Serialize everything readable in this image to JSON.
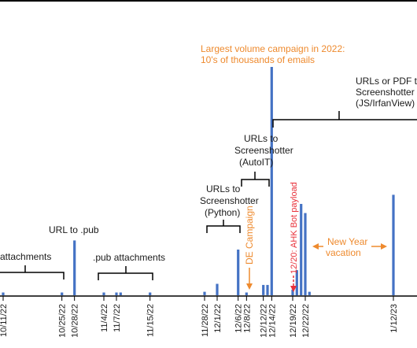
{
  "chart_data": {
    "type": "bar",
    "title": "",
    "xlabel": "",
    "ylabel": "",
    "bar_color": "#4472c4",
    "bars": [
      {
        "x": "10/11/22",
        "value": 0.012
      },
      {
        "x": "10/25/22",
        "value": 0.012
      },
      {
        "x": "10/28/22",
        "value": 0.24
      },
      {
        "x": "11/4/22",
        "value": 0.012
      },
      {
        "x": "11/7/22",
        "value": 0.012
      },
      {
        "x": "11/8/22",
        "value": 0.012
      },
      {
        "x": "11/15/22",
        "value": 0.012
      },
      {
        "x": "11/28/22",
        "value": 0.015
      },
      {
        "x": "12/1/22",
        "value": 0.05
      },
      {
        "x": "12/6/22",
        "value": 0.2
      },
      {
        "x": "12/8/22",
        "value": 0.012
      },
      {
        "x": "12/12/22",
        "value": 0.045
      },
      {
        "x": "12/13/22",
        "value": 0.045
      },
      {
        "x": "12/14/22",
        "value": 1.0
      },
      {
        "x": "12/19/22",
        "value": 0.025
      },
      {
        "x": "12/20/22",
        "value": 0.11
      },
      {
        "x": "12/21/22",
        "value": 0.4
      },
      {
        "x": "12/22/22",
        "value": 0.36
      },
      {
        "x": "12/23/22",
        "value": 0.015
      },
      {
        "x": "1/12/23",
        "value": 0.44
      }
    ],
    "tick_labels": [
      "10/11/22",
      "10/25/22",
      "10/28/22",
      "11/4/22",
      "11/7/22",
      "11/15/22",
      "11/28/22",
      "12/1/22",
      "12/6/22",
      "12/8/22",
      "12/12/22",
      "12/14/22",
      "12/19/22",
      "12/22/22",
      "1/12/23"
    ],
    "annotations": {
      "largest_campaign": {
        "lines": [
          "Largest volume campaign in 2022:",
          "10's of thousands of emails"
        ],
        "color": "#ee8a2e"
      },
      "urls_pdf": {
        "lines": [
          "URLs or PDF t",
          "Screenshotter",
          "(JS/IrfanView)"
        ],
        "color": "#1a1a1a"
      },
      "autoit": {
        "lines": [
          "URLs to",
          "Screenshotter",
          "(AutoIT)"
        ],
        "color": "#1a1a1a"
      },
      "python": {
        "lines": [
          "URLs to",
          "Screenshotter",
          "(Python)"
        ],
        "color": "#1a1a1a"
      },
      "url_pub": {
        "text": "URL to .pub",
        "color": "#1a1a1a"
      },
      "attachments": {
        "text": "attachments",
        "color": "#1a1a1a"
      },
      "pub_attachments": {
        "text": ".pub attachments",
        "color": "#1a1a1a"
      },
      "de_campaign": {
        "text": "DE Campaign",
        "color": "#ee8a2e"
      },
      "ahk_bot": {
        "text": "12/20: AHK Bot payload",
        "color": "#e8303a"
      },
      "new_year": {
        "lines": [
          "New Year",
          "vacation"
        ],
        "color": "#ee8a2e"
      }
    }
  }
}
